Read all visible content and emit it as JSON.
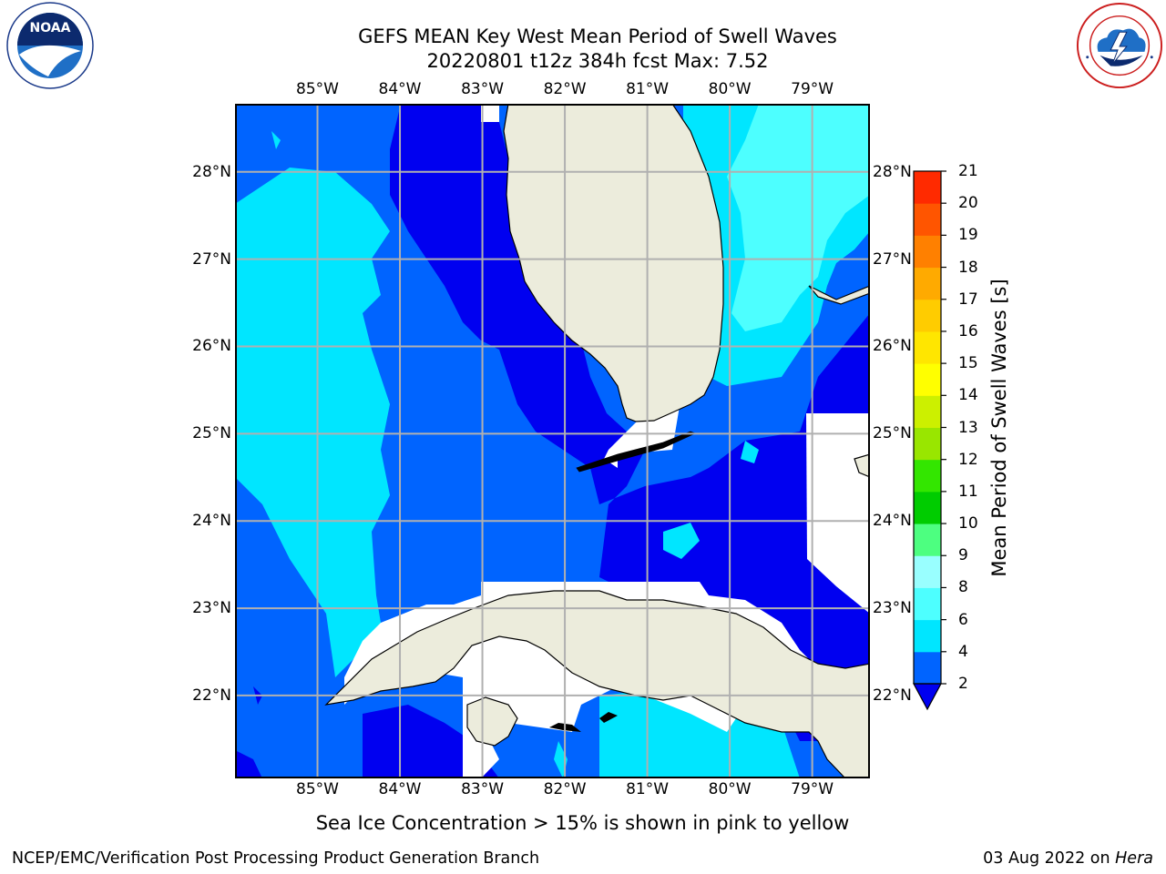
{
  "header": {
    "title_line1": "GEFS MEAN Key West Mean Period of Swell Waves",
    "title_line2": "20220801 t12z 384h fcst   Max: 7.52"
  },
  "logos": {
    "left": {
      "icon": "noaa-logo",
      "text": "NOAA",
      "ring_text": "NATIONAL OCEANIC AND ATMOSPHERIC ADMINISTRATION · U.S. DEPARTMENT OF COMMERCE"
    },
    "right": {
      "icon": "nws-logo",
      "ring_text": "NATIONAL WEATHER SERVICE"
    }
  },
  "map": {
    "lon_labels": [
      "85°W",
      "84°W",
      "83°W",
      "82°W",
      "81°W",
      "80°W",
      "79°W"
    ],
    "lat_labels": [
      "28°N",
      "27°N",
      "26°N",
      "25°N",
      "24°N",
      "23°N",
      "22°N"
    ],
    "lon_range": [
      -86,
      -78.3
    ],
    "lat_range": [
      21.05,
      28.78
    ],
    "gridlines": true,
    "land_color": "#ececdc",
    "masked_color": "#ffffff"
  },
  "colorbar": {
    "label": "Mean Period of Swell Waves [s]",
    "tick_labels": [
      "2",
      "4",
      "6",
      "8",
      "9",
      "10",
      "11",
      "12",
      "13",
      "14",
      "15",
      "16",
      "17",
      "18",
      "19",
      "20",
      "21"
    ],
    "levels": [
      2,
      4,
      6,
      8,
      9,
      10,
      11,
      12,
      13,
      14,
      15,
      16,
      17,
      18,
      19,
      20,
      21
    ],
    "colors": [
      "#0064ff",
      "#00e6ff",
      "#4dffff",
      "#99ffff",
      "#4dff80",
      "#00cc00",
      "#33e600",
      "#99e600",
      "#ccf000",
      "#ffff00",
      "#ffe600",
      "#ffcc00",
      "#ffaa00",
      "#ff8000",
      "#ff5500",
      "#ff2a00"
    ],
    "under_color": "#0000f0",
    "extend": "min"
  },
  "field_colors": {
    "under_2s": "#0000f0",
    "s2_4": "#0064ff",
    "s4_6": "#00e6ff",
    "s6_8": "#4dffff"
  },
  "notes": {
    "sea_ice": "Sea Ice Concentration > 15% is shown in pink to yellow"
  },
  "footer": {
    "left": "NCEP/EMC/Verification Post Processing Product Generation Branch",
    "right_date": "03 Aug 2022 on ",
    "right_machine": "Hera"
  }
}
